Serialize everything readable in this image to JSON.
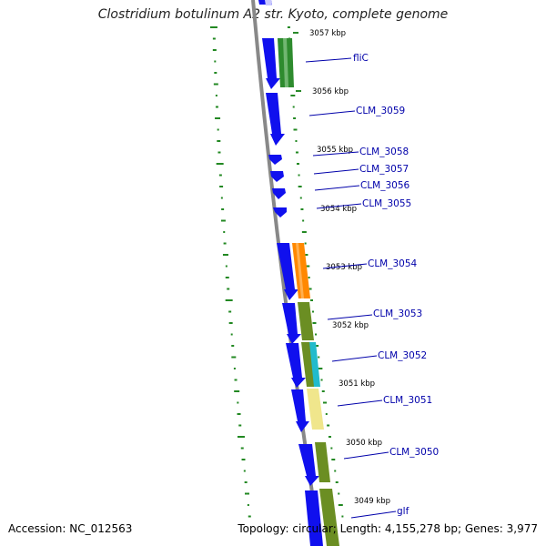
{
  "title": "Clostridium botulinum A2 str. Kyoto, complete genome",
  "accession": "Accession: NC_012563",
  "topology": "Topology: circular; Length: 4,155,278 bp; Genes: 3,977",
  "colors": {
    "cds": "#1010ee",
    "backbone": "#888888",
    "gc": "#228822",
    "label": "#0000aa"
  },
  "kbp_ticks": [
    "3057 kbp",
    "3056 kbp",
    "3055 kbp",
    "3054 kbp",
    "3053 kbp",
    "3052 kbp",
    "3051 kbp",
    "3050 kbp",
    "3049 kbp"
  ],
  "genes": [
    {
      "name": "fliC",
      "cog": "#2e8b2e"
    },
    {
      "name": "CLM_3059",
      "cog": ""
    },
    {
      "name": "CLM_3058",
      "cog": ""
    },
    {
      "name": "CLM_3057",
      "cog": ""
    },
    {
      "name": "CLM_3056",
      "cog": ""
    },
    {
      "name": "CLM_3055",
      "cog": ""
    },
    {
      "name": "CLM_3054",
      "cog": "#ff8800"
    },
    {
      "name": "CLM_3053",
      "cog": "#6b8e23"
    },
    {
      "name": "CLM_3052",
      "cog": "#22bbcc"
    },
    {
      "name": "CLM_3051",
      "cog": "#f0e68c"
    },
    {
      "name": "CLM_3050",
      "cog": "#6b8e23"
    },
    {
      "name": "glf",
      "cog": "#6b8e23"
    }
  ]
}
